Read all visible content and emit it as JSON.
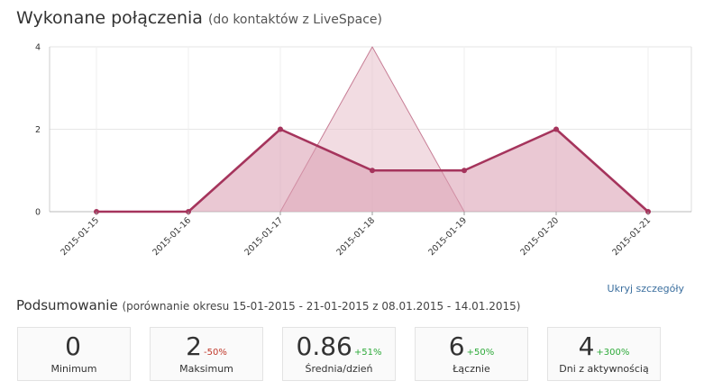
{
  "header": {
    "title": "Wykonane połączenia",
    "subtitle": "(do kontaktów z LiveSpace)"
  },
  "chart_data": {
    "type": "area",
    "categories": [
      "2015-01-15",
      "2015-01-16",
      "2015-01-17",
      "2015-01-18",
      "2015-01-19",
      "2015-01-20",
      "2015-01-21"
    ],
    "series": [
      {
        "values": [
          0,
          0,
          2,
          1,
          1,
          2,
          0
        ],
        "color": "#a5345c",
        "fill": "#d99aae"
      },
      {
        "values": [
          null,
          null,
          0,
          4,
          0,
          null,
          null
        ],
        "color": "#c77d95",
        "fill": "#e8bfcb"
      }
    ],
    "yticks": [
      0,
      2,
      4
    ],
    "ylim": [
      0,
      4
    ],
    "grid": true
  },
  "details_toggle": {
    "label": "Ukryj szczegóły"
  },
  "summary": {
    "title": "Podsumowanie",
    "subtitle": "(porównanie okresu 15-01-2015 - 21-01-2015 z 08.01.2015 - 14.01.2015)",
    "stats": [
      {
        "value": "0",
        "change": "",
        "trend": "",
        "label": "Minimum"
      },
      {
        "value": "2",
        "change": "-50%",
        "trend": "down",
        "label": "Maksimum"
      },
      {
        "value": "0.86",
        "change": "+51%",
        "trend": "up",
        "label": "Średnia/dzień"
      },
      {
        "value": "6",
        "change": "+50%",
        "trend": "up",
        "label": "Łącznie"
      },
      {
        "value": "4",
        "change": "+300%",
        "trend": "up",
        "label": "Dni z aktywnością"
      }
    ]
  }
}
